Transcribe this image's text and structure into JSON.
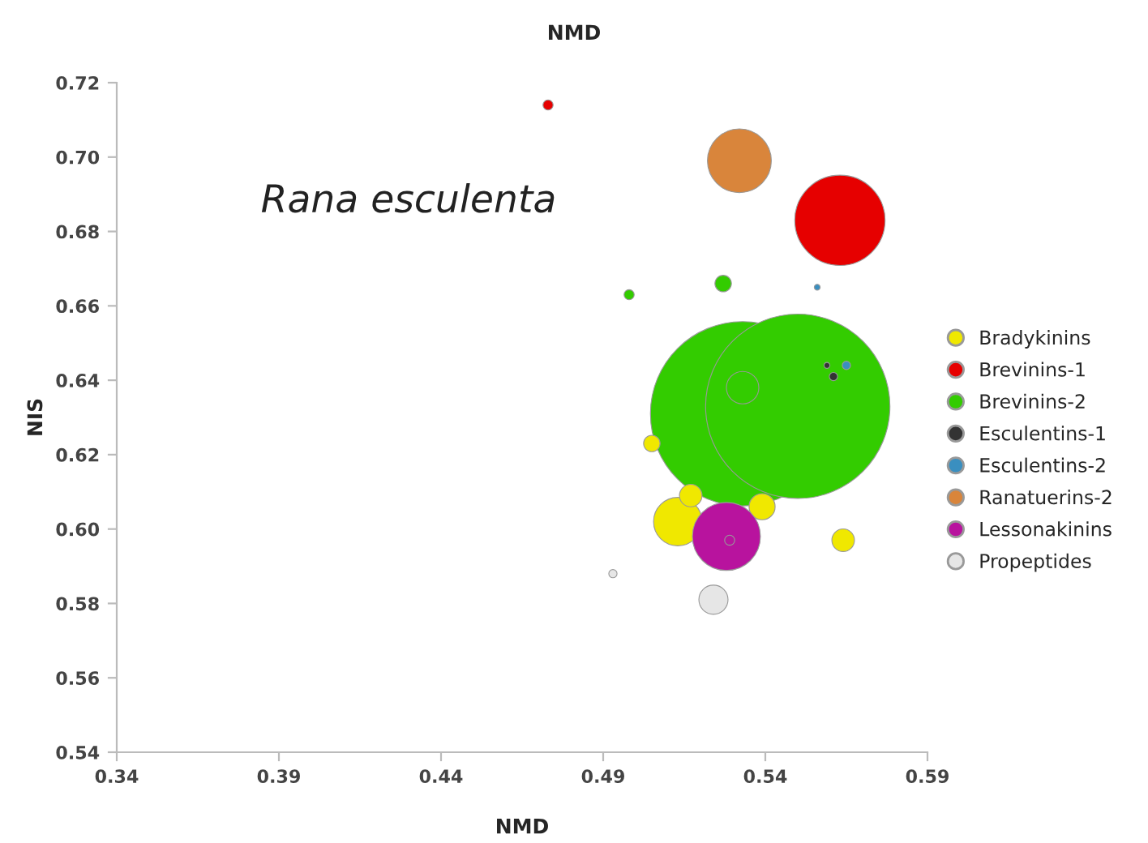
{
  "chart_data": {
    "type": "bubble",
    "xlabel": "NMD",
    "ylabel": "NIS",
    "annotations": [
      "Rana esculenta",
      "NMD"
    ],
    "xlim": [
      0.34,
      0.59
    ],
    "xticks": [
      0.34,
      0.39,
      0.44,
      0.49,
      0.54,
      0.59
    ],
    "ylim": [
      0.54,
      0.72
    ],
    "yticks": [
      0.54,
      0.56,
      0.58,
      {
        "value": 0.6,
        "label": "0.60"
      },
      0.62,
      0.64,
      0.66,
      0.68,
      {
        "value": 0.7,
        "label": "0.70"
      },
      0.72
    ],
    "grid": false,
    "legend": "right",
    "series": [
      {
        "name": "Bradykinins",
        "color": "#f0e800",
        "x": [
          0.505,
          0.517,
          0.513,
          0.539,
          0.564
        ],
        "values": [
          0.623,
          0.609,
          0.602,
          0.606,
          0.597
        ],
        "sizes": [
          0.008,
          0.015,
          0.069,
          0.02,
          0.015
        ]
      },
      {
        "name": "Brevinins-1",
        "color": "#e60000",
        "x": [
          0.473,
          0.563
        ],
        "values": [
          0.714,
          0.683
        ],
        "sizes": [
          0.003,
          0.24
        ]
      },
      {
        "name": "Brevinins-2",
        "color": "#33cc00",
        "x": [
          0.498,
          0.527,
          0.533,
          0.55,
          0.533
        ],
        "values": [
          0.663,
          0.666,
          0.631,
          0.633,
          0.638
        ],
        "sizes": [
          0.003,
          0.008,
          1,
          1,
          0.031
        ]
      },
      {
        "name": "Esculentins-1",
        "color": "#333333",
        "x": [
          0.561,
          0.559
        ],
        "values": [
          0.641,
          0.644
        ],
        "sizes": [
          0.002,
          0.001
        ]
      },
      {
        "name": "Esculentins-2",
        "color": "#3a8fc0",
        "x": [
          0.565,
          0.556
        ],
        "values": [
          0.644,
          0.665
        ],
        "sizes": [
          0.002,
          0.001
        ]
      },
      {
        "name": "Ranatuerins-2",
        "color": "#d9853b",
        "x": [
          0.532
        ],
        "values": [
          0.699
        ],
        "sizes": [
          0.12
        ]
      },
      {
        "name": "Lessonakinins",
        "color": "#b8139e",
        "x": [
          0.528,
          0.529
        ],
        "values": [
          0.598,
          0.597
        ],
        "sizes": [
          0.136,
          0.003
        ]
      },
      {
        "name": "Propeptides",
        "color": "#e6e6e6",
        "x": [
          0.493,
          0.524
        ],
        "values": [
          0.588,
          0.581
        ],
        "sizes": [
          0.002,
          0.025
        ]
      }
    ]
  }
}
